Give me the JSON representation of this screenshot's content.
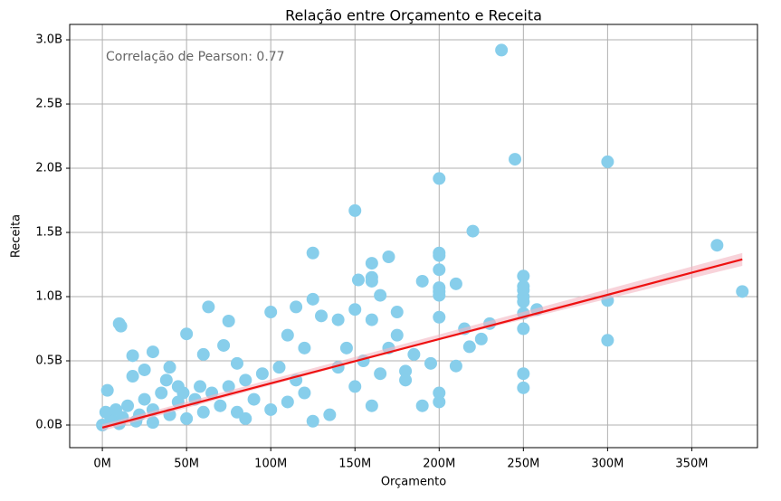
{
  "chart_data": {
    "type": "scatter",
    "title": "Relação entre Orçamento e Receita",
    "x_label": "Orçamento",
    "y_label": "Receita",
    "annotation": "Correlação de Pearson: 0.77",
    "color": "#87ceeb",
    "grid": true,
    "xlim": [
      -19.4,
      389
    ],
    "ylim": [
      -0.176,
      3.12
    ],
    "xticks": [
      {
        "value": 0,
        "label": "0M"
      },
      {
        "value": 50,
        "label": "50M"
      },
      {
        "value": 100,
        "label": "100M"
      },
      {
        "value": 150,
        "label": "150M"
      },
      {
        "value": 200,
        "label": "200M"
      },
      {
        "value": 250,
        "label": "250M"
      },
      {
        "value": 300,
        "label": "300M"
      },
      {
        "value": 350,
        "label": "350M"
      }
    ],
    "yticks": [
      {
        "value": 0,
        "label": "0.0B"
      },
      {
        "value": 0.5,
        "label": "0.5B"
      },
      {
        "value": 1,
        "label": "1.0B"
      },
      {
        "value": 1.5,
        "label": "1.5B"
      },
      {
        "value": 2,
        "label": "2.0B"
      },
      {
        "value": 2.5,
        "label": "2.5B"
      },
      {
        "value": 3,
        "label": "3.0B"
      }
    ],
    "x": [
      237,
      245,
      300,
      200,
      150,
      220,
      365,
      125,
      200,
      200,
      170,
      160,
      200,
      152,
      160,
      160,
      190,
      210,
      250,
      250,
      250,
      250,
      200,
      200,
      200,
      380,
      165,
      300,
      125,
      250,
      258,
      250,
      63,
      115,
      100,
      150,
      175,
      10,
      11,
      75,
      140,
      160,
      200,
      230,
      215,
      250,
      50,
      72,
      30,
      60,
      18,
      300,
      225,
      218,
      250,
      250,
      3,
      40,
      80,
      120,
      110,
      130,
      185,
      195,
      210,
      180,
      190,
      200,
      200,
      150,
      160,
      135,
      125,
      100,
      90,
      70,
      60,
      50,
      40,
      30,
      20,
      10,
      5,
      0,
      2,
      15,
      25,
      35,
      45,
      55,
      65,
      75,
      85,
      95,
      105,
      115,
      140,
      145,
      155,
      165,
      170,
      175,
      180,
      120,
      110,
      80,
      85,
      45,
      30,
      22,
      12,
      8,
      18,
      25,
      38,
      48,
      58
    ],
    "y": [
      2.92,
      2.07,
      2.05,
      1.92,
      1.67,
      1.51,
      1.4,
      1.34,
      1.34,
      1.32,
      1.31,
      1.26,
      1.21,
      1.13,
      1.15,
      1.12,
      1.12,
      1.1,
      1.16,
      1.08,
      1.05,
      1.0,
      1.07,
      1.04,
      1.01,
      1.04,
      1.01,
      0.97,
      0.98,
      0.96,
      0.9,
      0.87,
      0.92,
      0.92,
      0.88,
      0.9,
      0.88,
      0.79,
      0.77,
      0.81,
      0.82,
      0.82,
      0.84,
      0.79,
      0.75,
      0.75,
      0.71,
      0.62,
      0.57,
      0.55,
      0.54,
      0.66,
      0.67,
      0.61,
      0.4,
      0.29,
      0.27,
      0.45,
      0.48,
      0.6,
      0.7,
      0.85,
      0.55,
      0.48,
      0.46,
      0.35,
      0.15,
      0.18,
      0.25,
      0.3,
      0.15,
      0.08,
      0.03,
      0.12,
      0.2,
      0.15,
      0.1,
      0.05,
      0.08,
      0.02,
      0.03,
      0.01,
      0.05,
      0.0,
      0.1,
      0.15,
      0.2,
      0.25,
      0.3,
      0.2,
      0.25,
      0.3,
      0.35,
      0.4,
      0.45,
      0.35,
      0.45,
      0.6,
      0.5,
      0.4,
      0.6,
      0.7,
      0.42,
      0.25,
      0.18,
      0.1,
      0.05,
      0.18,
      0.12,
      0.08,
      0.06,
      0.12,
      0.38,
      0.43,
      0.35,
      0.25,
      0.3
    ],
    "trend": {
      "color": "#ee1111",
      "x": [
        0,
        380
      ],
      "y": [
        -0.02,
        1.29
      ]
    },
    "band": {
      "color": "#f4b6c2",
      "x": [
        0,
        190,
        380
      ],
      "lower": [
        -0.045,
        0.63,
        1.24
      ],
      "upper": [
        0.005,
        0.67,
        1.34
      ]
    }
  }
}
